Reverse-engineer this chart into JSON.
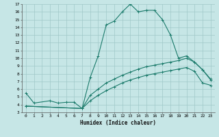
{
  "xlabel": "Humidex (Indice chaleur)",
  "xlim": [
    -0.5,
    23.5
  ],
  "ylim": [
    3,
    17
  ],
  "yticks": [
    3,
    4,
    5,
    6,
    7,
    8,
    9,
    10,
    11,
    12,
    13,
    14,
    15,
    16,
    17
  ],
  "xticks": [
    0,
    1,
    2,
    3,
    4,
    5,
    6,
    7,
    8,
    9,
    10,
    11,
    12,
    13,
    14,
    15,
    16,
    17,
    18,
    19,
    20,
    21,
    22,
    23
  ],
  "bg_color": "#c6e6e6",
  "line_color": "#1a7a6a",
  "grid_color": "#a0c8c8",
  "line1_x": [
    0,
    1,
    3,
    4,
    5,
    6,
    7,
    8,
    9,
    10,
    11,
    12,
    13,
    14,
    15,
    16,
    17,
    18,
    19,
    20,
    21,
    22,
    23
  ],
  "line1_y": [
    5.5,
    4.2,
    4.5,
    4.2,
    4.3,
    4.3,
    3.5,
    7.5,
    10.3,
    14.3,
    14.8,
    16.0,
    17.0,
    16.0,
    16.2,
    16.2,
    15.0,
    13.0,
    10.0,
    10.3,
    9.5,
    8.5,
    7.3
  ],
  "line2_x": [
    0,
    7,
    8,
    9,
    10,
    11,
    12,
    13,
    14,
    15,
    16,
    17,
    18,
    19,
    20,
    21,
    22,
    23
  ],
  "line2_y": [
    3.8,
    3.5,
    5.2,
    6.0,
    6.8,
    7.3,
    7.8,
    8.2,
    8.6,
    8.9,
    9.1,
    9.3,
    9.5,
    9.7,
    10.0,
    9.5,
    8.5,
    7.2
  ],
  "line3_x": [
    0,
    7,
    8,
    9,
    10,
    11,
    12,
    13,
    14,
    15,
    16,
    17,
    18,
    19,
    20,
    21,
    22,
    23
  ],
  "line3_y": [
    3.8,
    3.5,
    4.5,
    5.2,
    5.8,
    6.3,
    6.8,
    7.2,
    7.5,
    7.8,
    8.0,
    8.2,
    8.4,
    8.6,
    8.8,
    8.3,
    6.8,
    6.5
  ]
}
